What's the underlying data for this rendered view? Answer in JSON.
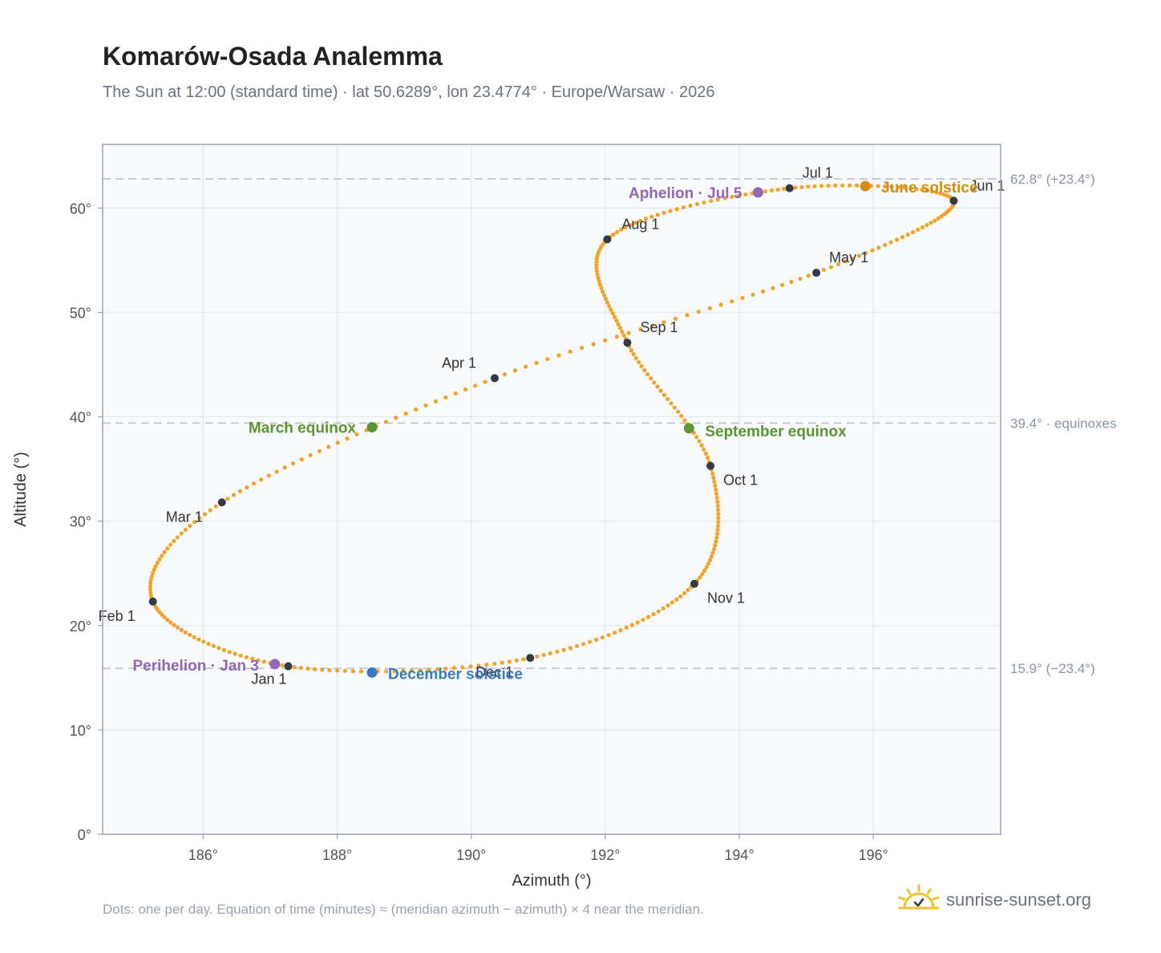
{
  "title": "Komarów-Osada Analemma",
  "subtitle": "The Sun at 12:00 (standard time) · lat 50.6289°, lon 23.4774° · Europe/Warsaw · 2026",
  "footnote": "Dots: one per day. Equation of time (minutes) ≈ (meridian azimuth − azimuth) × 4 near the meridian.",
  "brand": {
    "name": "sunrise-sunset.org",
    "logo_icon": "sun-logo-icon"
  },
  "colors": {
    "curve": "#f2a32c",
    "month_marker": "#333a45",
    "equinox": "#5a9632",
    "june_solstice": "#d08f10",
    "december_solstice": "#3a7bbf",
    "apsis": "#9367b5",
    "reference_line": "#b8c0cc",
    "plot_bg": "#f8fafc",
    "grid": "#e2e8f0",
    "frame": "#9aa5b4"
  },
  "chart_data": {
    "type": "scatter",
    "title": "Komarów-Osada Analemma",
    "xlabel": "Azimuth (°)",
    "ylabel": "Altitude (°)",
    "xlim": [
      184.5,
      197.9
    ],
    "ylim": [
      0,
      66.1
    ],
    "xticks": [
      186,
      188,
      190,
      192,
      194,
      196
    ],
    "yticks": [
      0,
      10,
      20,
      30,
      40,
      50,
      60
    ],
    "xtick_labels": [
      "186°",
      "188°",
      "190°",
      "192°",
      "194°",
      "196°"
    ],
    "ytick_labels": [
      "0°",
      "10°",
      "20°",
      "30°",
      "40°",
      "50°",
      "60°"
    ],
    "grid": true,
    "reference_lines": [
      {
        "y": 62.8,
        "label": "62.8° (+23.4°)"
      },
      {
        "y": 39.4,
        "label": "39.4° · equinoxes"
      },
      {
        "y": 15.9,
        "label": "15.9° (−23.4°)"
      }
    ],
    "month_markers": [
      {
        "label": "Jan 1",
        "azimuth": 187.27,
        "altitude": 16.1
      },
      {
        "label": "Feb 1",
        "azimuth": 185.25,
        "altitude": 22.3
      },
      {
        "label": "Mar 1",
        "azimuth": 186.28,
        "altitude": 31.8
      },
      {
        "label": "Apr 1",
        "azimuth": 190.35,
        "altitude": 43.7
      },
      {
        "label": "May 1",
        "azimuth": 195.15,
        "altitude": 53.8
      },
      {
        "label": "Jun 1",
        "azimuth": 197.2,
        "altitude": 60.7
      },
      {
        "label": "Jul 1",
        "azimuth": 194.75,
        "altitude": 61.9
      },
      {
        "label": "Aug 1",
        "azimuth": 192.03,
        "altitude": 57.0
      },
      {
        "label": "Sep 1",
        "azimuth": 192.33,
        "altitude": 47.1
      },
      {
        "label": "Oct 1",
        "azimuth": 193.57,
        "altitude": 35.3
      },
      {
        "label": "Nov 1",
        "azimuth": 193.33,
        "altitude": 24.0
      },
      {
        "label": "Dec 1",
        "azimuth": 190.88,
        "altitude": 16.9
      }
    ],
    "events": [
      {
        "label": "March equinox",
        "azimuth": 188.52,
        "altitude": 39.0,
        "kind": "equinox"
      },
      {
        "label": "September equinox",
        "azimuth": 193.25,
        "altitude": 38.9,
        "kind": "equinox"
      },
      {
        "label": "June solstice",
        "azimuth": 195.88,
        "altitude": 62.1,
        "kind": "june_solstice"
      },
      {
        "label": "December solstice",
        "azimuth": 188.52,
        "altitude": 15.5,
        "kind": "december_solstice"
      },
      {
        "label": "Aphelion · Jul 5",
        "azimuth": 194.28,
        "altitude": 61.5,
        "kind": "apsis"
      },
      {
        "label": "Perihelion · Jan 3",
        "azimuth": 187.07,
        "altitude": 16.3,
        "kind": "apsis"
      }
    ]
  }
}
